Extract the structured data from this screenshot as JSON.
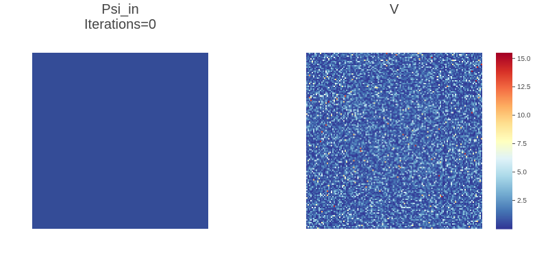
{
  "chart_data": [
    {
      "type": "heatmap",
      "title_line1": "Psi_in",
      "title_line2": "Iterations=0",
      "grid": false,
      "values_description_uniform": true,
      "fill_color": "#344c97"
    },
    {
      "type": "heatmap",
      "title": "V",
      "grid": false,
      "colormap": "RdYlBu_r",
      "colorbar": {
        "ticks": [
          2.5,
          5.0,
          7.5,
          10.0,
          12.5,
          15.0
        ],
        "tick_labels": [
          "2.5",
          "5.0",
          "7.5",
          "10.0",
          "12.5",
          "15.0"
        ],
        "range": [
          0.0,
          15.5
        ],
        "placement": "right"
      },
      "noise": {
        "distribution": "exponential",
        "mean": 1.5,
        "max": 15.5,
        "grid_cells": 128,
        "seed": 12345
      }
    }
  ],
  "colors": {
    "low": "#313695",
    "high": "#a50026"
  }
}
